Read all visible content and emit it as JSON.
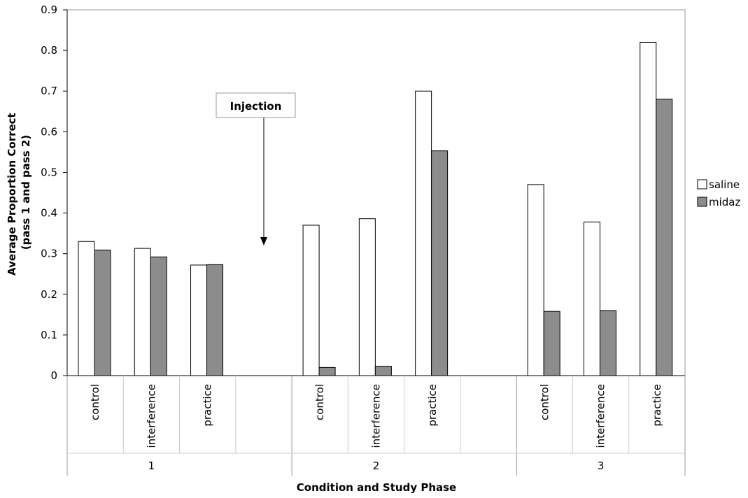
{
  "chart_data": {
    "type": "bar",
    "title": "",
    "xlabel": "Condition and Study Phase",
    "ylabel_line1": "Average Proportion Correct",
    "ylabel_line2": "(pass 1 and pass 2)",
    "ylim": [
      0,
      0.9
    ],
    "yticks": [
      "0",
      "0.1",
      "0.2",
      "0.3",
      "0.4",
      "0.5",
      "0.6",
      "0.7",
      "0.8",
      "0.9"
    ],
    "grid": false,
    "legend_position": "right",
    "groups": [
      {
        "label": "1",
        "categories": [
          "control",
          "interference",
          "practice"
        ]
      },
      {
        "label": "2",
        "categories": [
          "control",
          "interference",
          "practice"
        ]
      },
      {
        "label": "3",
        "categories": [
          "control",
          "interference",
          "practice"
        ]
      }
    ],
    "series": [
      {
        "name": "saline",
        "color": "#ffffff",
        "values": [
          0.33,
          0.313,
          0.272,
          0.37,
          0.386,
          0.7,
          0.47,
          0.378,
          0.82
        ]
      },
      {
        "name": "midaz",
        "color": "#8c8c8c",
        "values": [
          0.309,
          0.292,
          0.273,
          0.02,
          0.023,
          0.553,
          0.158,
          0.16,
          0.68
        ]
      }
    ],
    "annotation": {
      "text": "Injection",
      "points_to_y": 0.32
    }
  }
}
